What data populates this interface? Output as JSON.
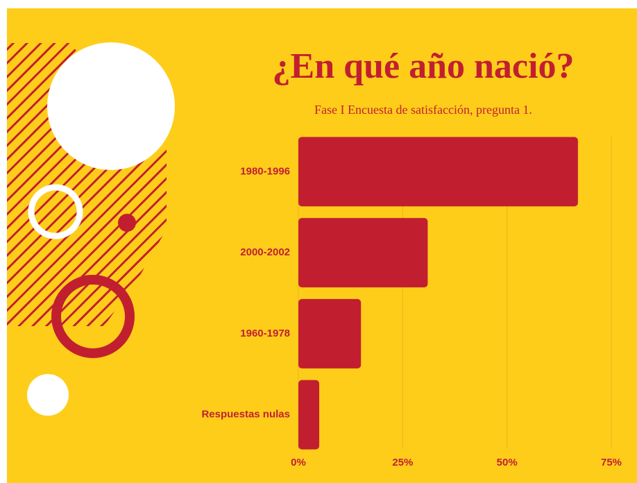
{
  "chart_data": {
    "type": "bar",
    "orientation": "horizontal",
    "title": "¿En qué año nació?",
    "subtitle": "Fase I Encuesta de satisfacción, pregunta 1.",
    "categories": [
      "1980-1996",
      "2000-2002",
      "1960-1978",
      "Respuestas nulas"
    ],
    "values": [
      67,
      31,
      15,
      5
    ],
    "color": "#c11f30",
    "xlim": [
      0,
      75
    ],
    "xticks": [
      {
        "value": 0,
        "label": "0%"
      },
      {
        "value": 25,
        "label": "25%"
      },
      {
        "value": 50,
        "label": "50%"
      },
      {
        "value": 75,
        "label": "75%"
      }
    ],
    "grid": true
  }
}
